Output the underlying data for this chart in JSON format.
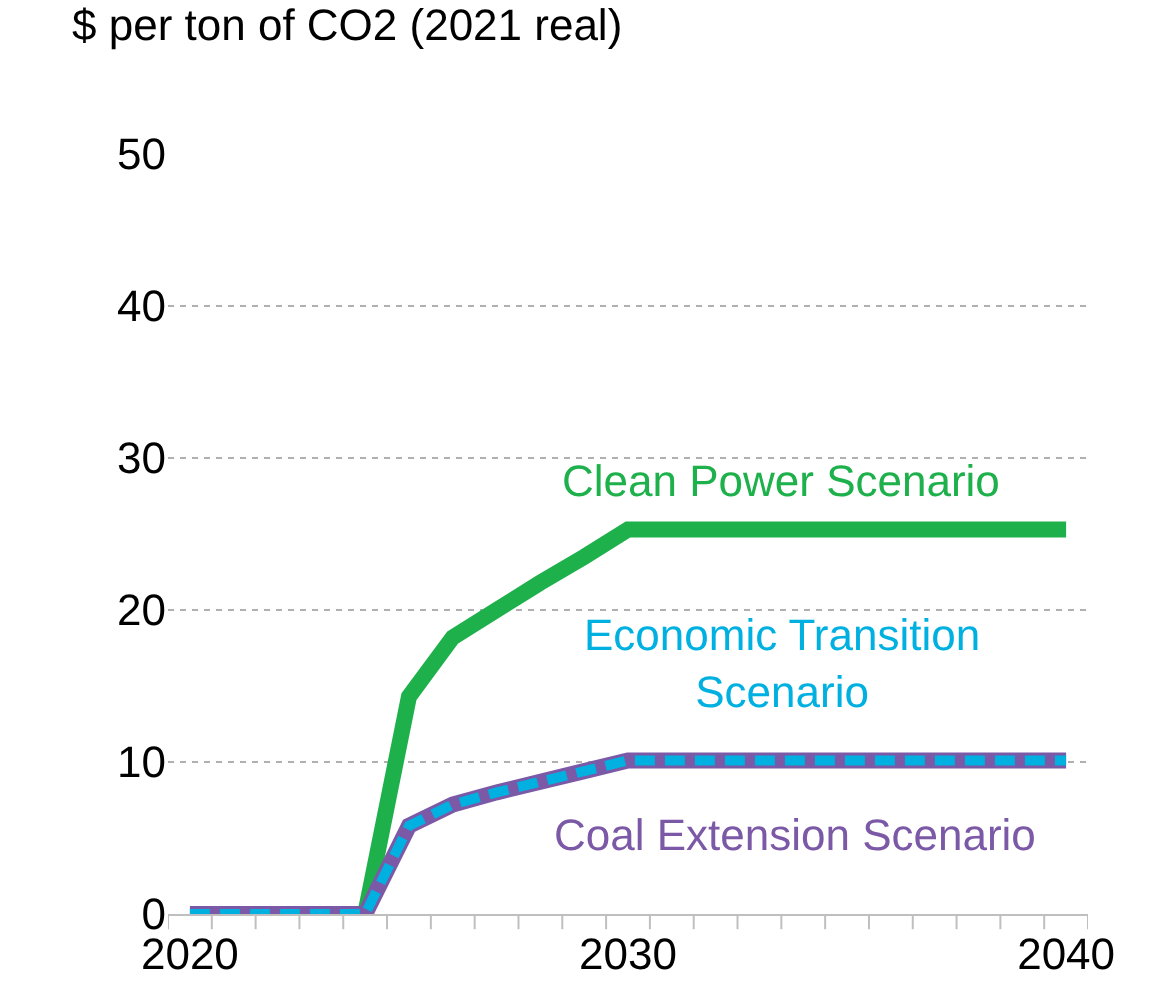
{
  "chart_data": {
    "type": "line",
    "ylabel": "$ per ton of CO2 (2021 real)",
    "x": [
      2020,
      2021,
      2022,
      2023,
      2024,
      2025,
      2026,
      2027,
      2028,
      2029,
      2030,
      2031,
      2032,
      2033,
      2034,
      2035,
      2036,
      2037,
      2038,
      2039,
      2040
    ],
    "series": [
      {
        "name": "Clean Power Scenario",
        "color": "#1db04b",
        "line_style": "solid",
        "values": [
          null,
          null,
          null,
          null,
          0,
          14.3,
          18.2,
          20,
          21.8,
          23.5,
          25.3,
          25.3,
          25.3,
          25.3,
          25.3,
          25.3,
          25.3,
          25.3,
          25.3,
          25.3,
          25.3
        ]
      },
      {
        "name": "Coal Extension Scenario",
        "color": "#7b59a6",
        "line_style": "solid",
        "values": [
          0,
          0,
          0,
          0,
          0,
          5.8,
          7.2,
          8,
          8.7,
          9.4,
          10.1,
          10.1,
          10.1,
          10.1,
          10.1,
          10.1,
          10.1,
          10.1,
          10.1,
          10.1,
          10.1
        ]
      },
      {
        "name": "Economic Transition Scenario",
        "color": "#00b0e0",
        "line_style": "dashed",
        "values": [
          0,
          0,
          0,
          0,
          0,
          5.8,
          7.2,
          8,
          8.7,
          9.4,
          10.1,
          10.1,
          10.1,
          10.1,
          10.1,
          10.1,
          10.1,
          10.1,
          10.1,
          10.1,
          10.1
        ]
      }
    ],
    "xlim": [
      2019.5,
      2040.5
    ],
    "xticks": [
      2020,
      2030,
      2040
    ],
    "ylim": [
      0,
      50
    ],
    "yticks": [
      0,
      10,
      20,
      30,
      40,
      50
    ],
    "grid": "y",
    "legend": false,
    "marker": "none"
  }
}
